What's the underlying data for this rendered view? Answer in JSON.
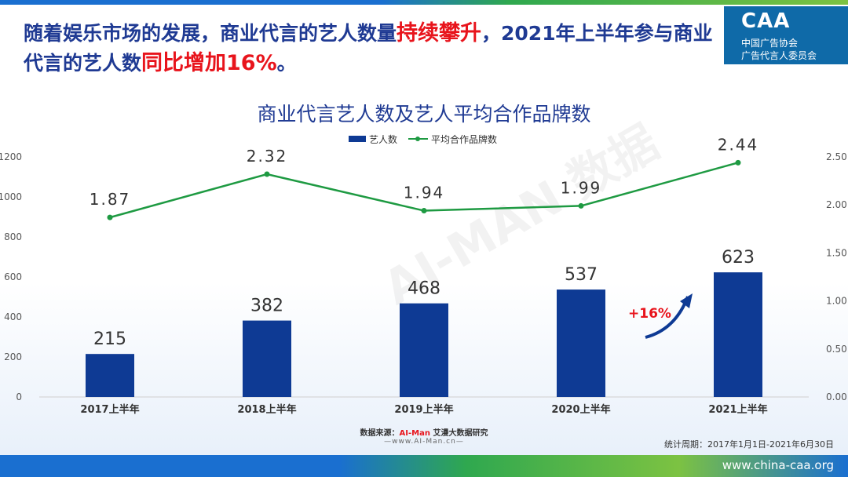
{
  "headline": {
    "part1": "随着娱乐市场的发展，商业代言的艺人数量",
    "highlight1": "持续攀升",
    "part2": "，2021年上半年参与商业代言的艺人数",
    "highlight2": "同比增加16%",
    "part3": "。"
  },
  "logo": {
    "mark": "CAA",
    "line1": "中国广告协会",
    "line2": "广告代言人委员会"
  },
  "chart_data": {
    "type": "bar",
    "title": "商业代言艺人数及艺人平均合作品牌数",
    "categories": [
      "2017上半年",
      "2018上半年",
      "2019上半年",
      "2020上半年",
      "2021上半年"
    ],
    "series": [
      {
        "name": "艺人数",
        "type": "bar",
        "axis": "left",
        "values": [
          215,
          382,
          468,
          537,
          623
        ],
        "color": "#0e3a94"
      },
      {
        "name": "平均合作品牌数",
        "type": "line",
        "axis": "right",
        "values": [
          1.87,
          2.32,
          1.94,
          1.99,
          2.44
        ],
        "color": "#1e9a42"
      }
    ],
    "y_left": {
      "min": 0,
      "max": 1200,
      "ticks": [
        0,
        200,
        400,
        600,
        800,
        1000,
        1200
      ]
    },
    "y_right": {
      "min": 0,
      "max": 2.5,
      "ticks": [
        "0.00",
        "0.50",
        "1.00",
        "1.50",
        "2.00",
        "2.50"
      ]
    },
    "legend_position": "top-center",
    "annotation": "+16%",
    "grid": false
  },
  "watermark": {
    "text": "AI-MAN 数据"
  },
  "footer": {
    "source_label": "数据来源：",
    "source_brand": "AI-Man",
    "source_rest": " 艾漫大数据研究",
    "source_url": "—www.AI-Man.cn—",
    "period": "统计周期：2017年1月1日-2021年6月30日",
    "site": "www.china-caa.org"
  }
}
